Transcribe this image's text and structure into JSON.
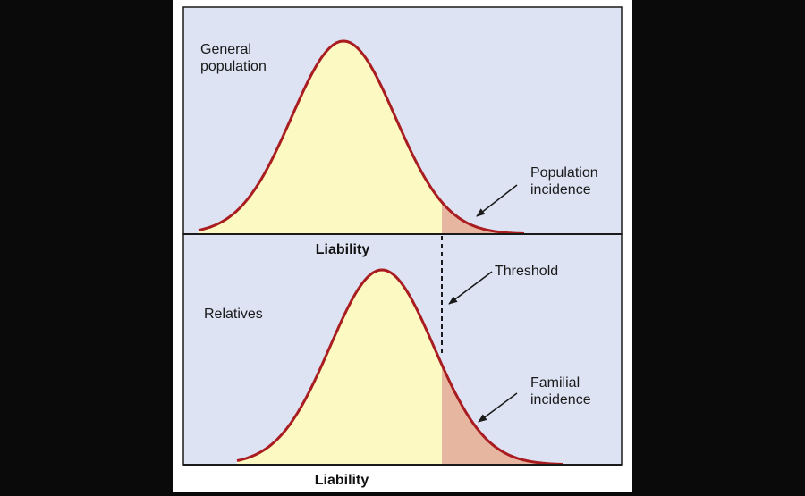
{
  "colors": {
    "background": "#0a0a0a",
    "page": "#ffffff",
    "panel_fill": "#dde3f3",
    "curve_fill": "#fdf9c2",
    "curve_stroke": "#a91c20",
    "incidence_fill": "#e7b6a0",
    "axis": "#1a1a1a"
  },
  "top_panel": {
    "label_line1": "General",
    "label_line2": "population",
    "axis_label": "Liability",
    "annotation_line1": "Population",
    "annotation_line2": "incidence"
  },
  "bottom_panel": {
    "label": "Relatives",
    "axis_label": "Liability",
    "annotation_line1": "Familial",
    "annotation_line2": "incidence"
  },
  "threshold": {
    "label": "Threshold"
  },
  "icons": {
    "arrow": "arrow-icon"
  }
}
